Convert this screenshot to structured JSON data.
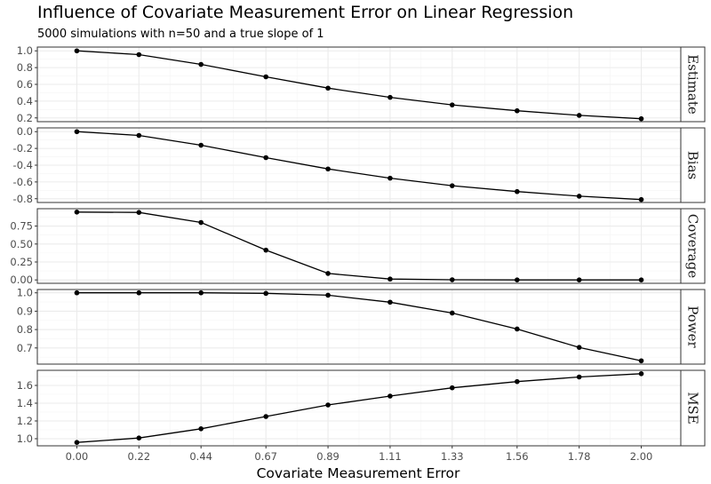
{
  "chart_data": {
    "type": "line",
    "title": "Influence of Covariate Measurement Error on Linear Regression",
    "subtitle": "5000 simulations with n=50 and a true slope of 1",
    "xlabel": "Covariate Measurement Error",
    "x": [
      0.0,
      0.22,
      0.44,
      0.67,
      0.89,
      1.11,
      1.33,
      1.56,
      1.78,
      2.0
    ],
    "x_tick_labels": [
      "0.00",
      "0.22",
      "0.44",
      "0.67",
      "0.89",
      "1.11",
      "1.33",
      "1.56",
      "1.78",
      "2.00"
    ],
    "grid": true,
    "facet_strip_position": "right",
    "panels": [
      {
        "label": "Estimate",
        "values": [
          1.0,
          0.955,
          0.838,
          0.69,
          0.555,
          0.445,
          0.355,
          0.285,
          0.23,
          0.19
        ],
        "ylim": [
          0.155,
          1.045
        ],
        "y_ticks": [
          0.2,
          0.4,
          0.6,
          0.8,
          1.0
        ],
        "y_tick_labels": [
          "0.2",
          "0.4",
          "0.6",
          "0.8",
          "1.0"
        ]
      },
      {
        "label": "Bias",
        "values": [
          0.0,
          -0.045,
          -0.162,
          -0.31,
          -0.445,
          -0.555,
          -0.645,
          -0.715,
          -0.77,
          -0.81
        ],
        "ylim": [
          -0.845,
          0.045
        ],
        "y_ticks": [
          -0.8,
          -0.6,
          -0.4,
          -0.2,
          0.0
        ],
        "y_tick_labels": [
          "-0.8",
          "-0.6",
          "-0.4",
          "-0.2",
          "0.0"
        ]
      },
      {
        "label": "Coverage",
        "values": [
          0.945,
          0.94,
          0.8,
          0.415,
          0.09,
          0.012,
          0.002,
          0.0,
          0.0,
          0.0
        ],
        "ylim": [
          -0.047,
          0.992
        ],
        "y_ticks": [
          0.0,
          0.25,
          0.5,
          0.75
        ],
        "y_tick_labels": [
          "0.00",
          "0.25",
          "0.50",
          "0.75"
        ]
      },
      {
        "label": "Power",
        "values": [
          1.0,
          1.0,
          1.0,
          0.997,
          0.987,
          0.949,
          0.89,
          0.803,
          0.703,
          0.63
        ],
        "ylim": [
          0.612,
          1.018
        ],
        "y_ticks": [
          0.7,
          0.8,
          0.9,
          1.0
        ],
        "y_tick_labels": [
          "0.7",
          "0.8",
          "0.9",
          "1.0"
        ]
      },
      {
        "label": "MSE",
        "values": [
          0.958,
          1.008,
          1.112,
          1.25,
          1.38,
          1.48,
          1.573,
          1.643,
          1.695,
          1.732
        ],
        "ylim": [
          0.92,
          1.77
        ],
        "y_ticks": [
          1.0,
          1.2,
          1.4,
          1.6
        ],
        "y_tick_labels": [
          "1.0",
          "1.2",
          "1.4",
          "1.6"
        ]
      }
    ]
  },
  "colors": {
    "line": "#000000",
    "point": "#000000",
    "grid_major": "#ebebeb",
    "grid_minor": "#f4f4f4",
    "panel_border": "#333333",
    "strip_fill": "#ffffff"
  }
}
